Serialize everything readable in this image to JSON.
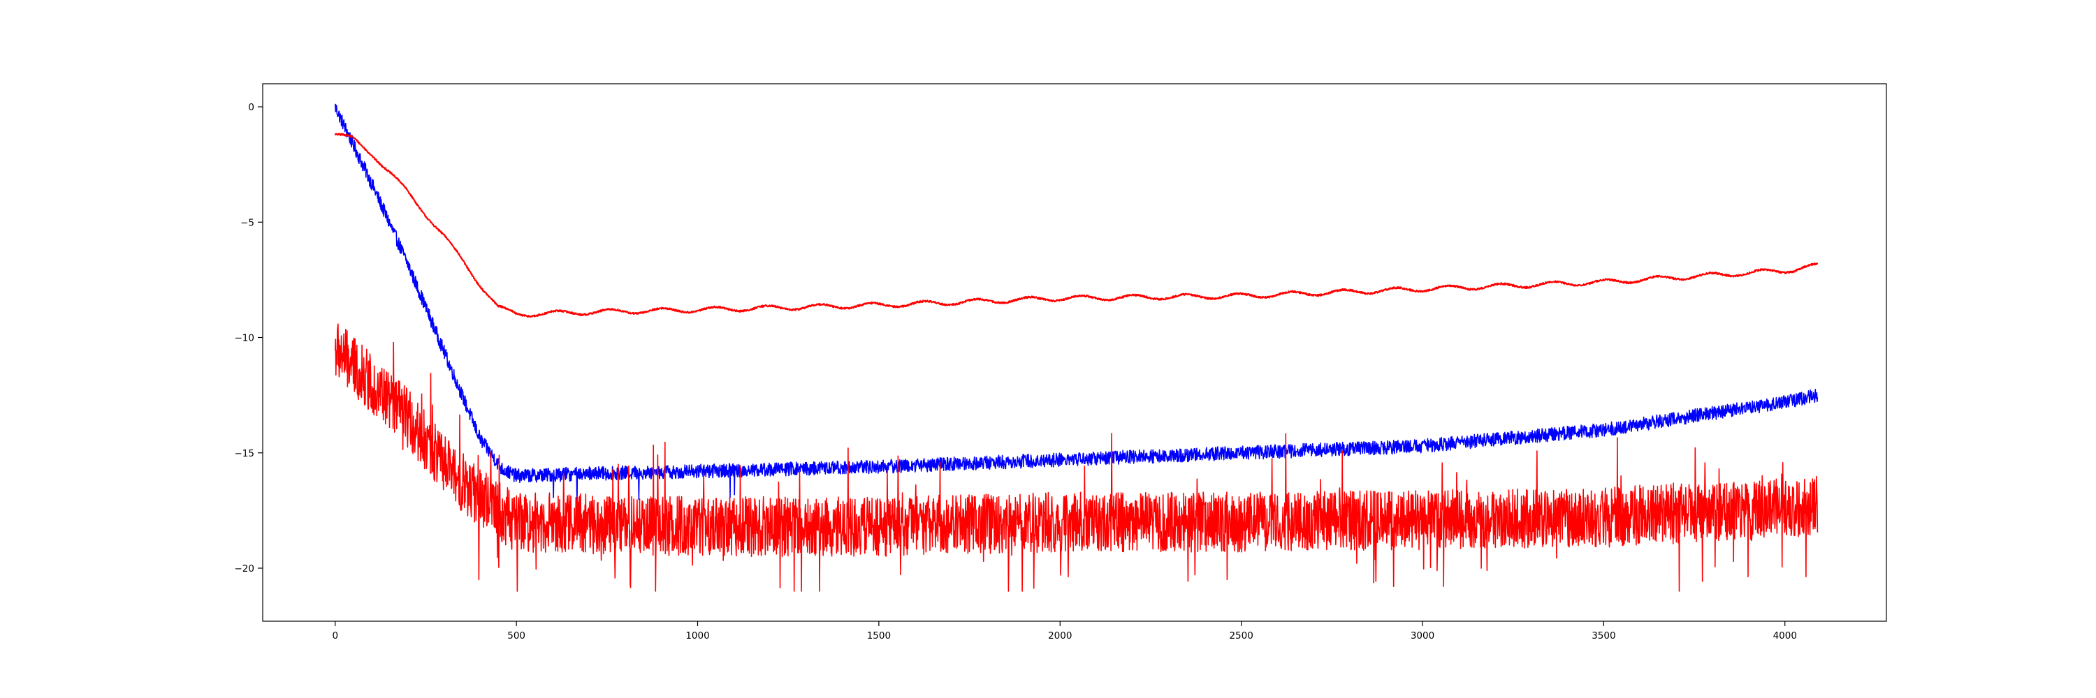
{
  "chart_data": {
    "type": "line",
    "title": "",
    "xlabel": "",
    "ylabel": "",
    "xlim": [
      -200,
      4280
    ],
    "ylim": [
      -22.3,
      1.0
    ],
    "x_ticks": [
      0,
      500,
      1000,
      1500,
      2000,
      2500,
      3000,
      3500,
      4000
    ],
    "y_ticks": [
      0,
      -5,
      -10,
      -15,
      -20
    ],
    "x_tick_labels": [
      "0",
      "500",
      "1000",
      "1500",
      "2000",
      "2500",
      "3000",
      "3500",
      "4000"
    ],
    "y_tick_labels": [
      "0",
      "−5",
      "−10",
      "−15",
      "−20"
    ],
    "grid": false,
    "legend": "none",
    "n_points": 4096,
    "series": [
      {
        "color": "#0000ff",
        "style": "noisy line",
        "noise_amplitude": 0.3,
        "points": [
          [
            0,
            0.0
          ],
          [
            100,
            -3.3
          ],
          [
            200,
            -6.8
          ],
          [
            300,
            -10.6
          ],
          [
            400,
            -14.4
          ],
          [
            460,
            -15.7
          ],
          [
            500,
            -16.0
          ],
          [
            700,
            -15.9
          ],
          [
            1000,
            -15.8
          ],
          [
            1500,
            -15.6
          ],
          [
            2000,
            -15.3
          ],
          [
            2500,
            -15.0
          ],
          [
            3000,
            -14.7
          ],
          [
            3500,
            -14.0
          ],
          [
            4000,
            -12.8
          ],
          [
            4090,
            -12.5
          ]
        ]
      },
      {
        "color": "#ff0000",
        "style": "smooth line",
        "noise_amplitude": 0.1,
        "points": [
          [
            0,
            -1.2
          ],
          [
            50,
            -1.4
          ],
          [
            100,
            -2.0
          ],
          [
            200,
            -3.7
          ],
          [
            300,
            -5.6
          ],
          [
            400,
            -7.7
          ],
          [
            450,
            -8.7
          ],
          [
            500,
            -9.0
          ],
          [
            700,
            -8.9
          ],
          [
            1000,
            -8.8
          ],
          [
            1500,
            -8.6
          ],
          [
            2000,
            -8.3
          ],
          [
            2500,
            -8.2
          ],
          [
            3000,
            -7.9
          ],
          [
            3500,
            -7.6
          ],
          [
            4000,
            -7.1
          ],
          [
            4090,
            -6.9
          ]
        ]
      },
      {
        "color": "#ff0000",
        "style": "spiky line",
        "noise_amplitude": 1.3,
        "points": [
          [
            0,
            -10.5
          ],
          [
            100,
            -12.0
          ],
          [
            200,
            -13.5
          ],
          [
            300,
            -15.5
          ],
          [
            400,
            -17.0
          ],
          [
            500,
            -18.0
          ],
          [
            1000,
            -18.2
          ],
          [
            1500,
            -18.2
          ],
          [
            2000,
            -18.0
          ],
          [
            2500,
            -18.0
          ],
          [
            3000,
            -17.9
          ],
          [
            3500,
            -17.8
          ],
          [
            4000,
            -17.4
          ],
          [
            4090,
            -17.3
          ]
        ]
      }
    ]
  }
}
